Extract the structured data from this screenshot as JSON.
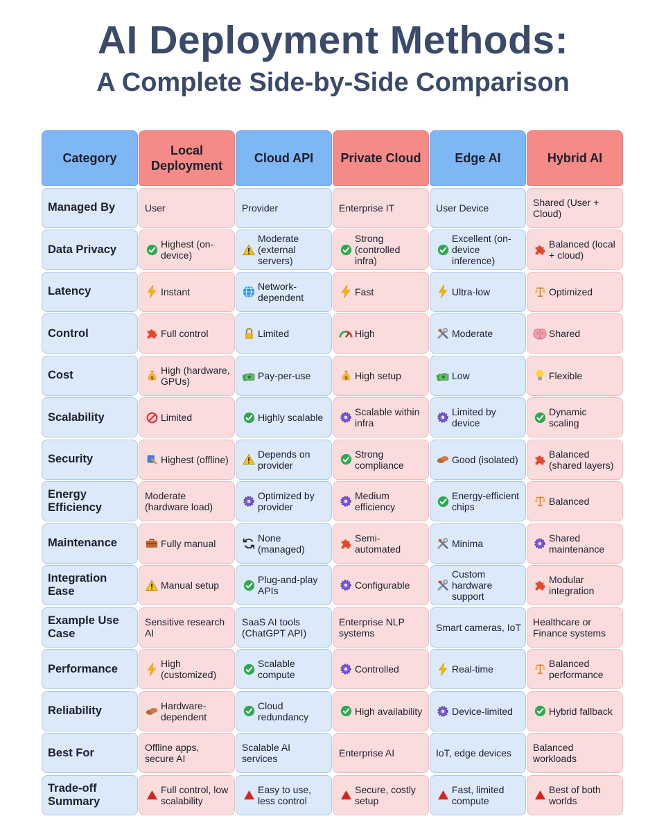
{
  "title": "AI Deployment Methods:",
  "subtitle": "A Complete Side-by-Side Comparison",
  "colors": {
    "header_blue": "#7fb6f4",
    "header_red": "#f58a86",
    "cell_blue": "#dbe9f9",
    "cell_pink": "#fbdcdc",
    "title": "#3a4a68"
  },
  "headers": [
    "Category",
    "Local Deployment",
    "Cloud API",
    "Private Cloud",
    "Edge AI",
    "Hybrid AI"
  ],
  "rows": [
    {
      "category": "Managed By",
      "cells": [
        {
          "icon": "",
          "text": "User"
        },
        {
          "icon": "",
          "text": "Provider"
        },
        {
          "icon": "",
          "text": "Enterprise IT"
        },
        {
          "icon": "",
          "text": "User Device"
        },
        {
          "icon": "",
          "text": "Shared (User + Cloud)"
        }
      ]
    },
    {
      "category": "Data Privacy",
      "cells": [
        {
          "icon": "check-icon",
          "text": "Highest (on-device)"
        },
        {
          "icon": "warning-icon",
          "text": "Moderate (external servers)"
        },
        {
          "icon": "check-icon",
          "text": "Strong (controlled infra)"
        },
        {
          "icon": "check-icon",
          "text": "Excellent (on-device inference)"
        },
        {
          "icon": "puzzle-icon",
          "text": "Balanced (local + cloud)"
        }
      ]
    },
    {
      "category": "Latency",
      "cells": [
        {
          "icon": "lightning-icon",
          "text": "Instant"
        },
        {
          "icon": "globe-icon",
          "text": "Network-dependent"
        },
        {
          "icon": "lightning-icon",
          "text": "Fast"
        },
        {
          "icon": "lightning-icon",
          "text": "Ultra-low"
        },
        {
          "icon": "scales-icon",
          "text": "Optimized"
        }
      ]
    },
    {
      "category": "Control",
      "cells": [
        {
          "icon": "puzzle-icon",
          "text": "Full control"
        },
        {
          "icon": "lock-icon",
          "text": "Limited"
        },
        {
          "icon": "gauge-icon",
          "text": "High"
        },
        {
          "icon": "tools-icon",
          "text": "Moderate"
        },
        {
          "icon": "brain-icon",
          "text": "Shared"
        }
      ]
    },
    {
      "category": "Cost",
      "cells": [
        {
          "icon": "money-bag-icon",
          "text": "High (hardware, GPUs)"
        },
        {
          "icon": "money-icon",
          "text": "Pay-per-use"
        },
        {
          "icon": "money-bag-icon",
          "text": "High setup"
        },
        {
          "icon": "money-icon",
          "text": "Low"
        },
        {
          "icon": "lightbulb-icon",
          "text": "Flexible"
        }
      ]
    },
    {
      "category": "Scalability",
      "cells": [
        {
          "icon": "prohibited-icon",
          "text": "Limited"
        },
        {
          "icon": "check-icon",
          "text": "Highly scalable"
        },
        {
          "icon": "gear-icon",
          "text": "Scalable within infra"
        },
        {
          "icon": "gear-icon",
          "text": "Limited by device"
        },
        {
          "icon": "check-icon",
          "text": "Dynamic scaling"
        }
      ]
    },
    {
      "category": "Security",
      "cells": [
        {
          "icon": "offline-icon",
          "text": "Highest (offline)"
        },
        {
          "icon": "warning-icon",
          "text": "Depends on provider"
        },
        {
          "icon": "check-icon",
          "text": "Strong compliance"
        },
        {
          "icon": "bricks-icon",
          "text": "Good (isolated)"
        },
        {
          "icon": "puzzle-icon",
          "text": "Balanced (shared layers)"
        }
      ]
    },
    {
      "category": "Energy Efficiency",
      "cells": [
        {
          "icon": "",
          "text": "Moderate (hardware load)"
        },
        {
          "icon": "gear-icon",
          "text": "Optimized by provider"
        },
        {
          "icon": "gear-icon",
          "text": "Medium efficiency"
        },
        {
          "icon": "check-icon",
          "text": "Energy-efficient chips"
        },
        {
          "icon": "scales-icon",
          "text": "Balanced"
        }
      ]
    },
    {
      "category": "Maintenance",
      "cells": [
        {
          "icon": "toolbox-icon",
          "text": "Fully manual"
        },
        {
          "icon": "refresh-icon",
          "text": "None (managed)"
        },
        {
          "icon": "puzzle-icon",
          "text": "Semi-automated"
        },
        {
          "icon": "tools-icon",
          "text": "Minima"
        },
        {
          "icon": "gear-icon",
          "text": "Shared maintenance"
        }
      ]
    },
    {
      "category": "Integration Ease",
      "cells": [
        {
          "icon": "warning-icon",
          "text": "Manual setup"
        },
        {
          "icon": "check-icon",
          "text": "Plug-and-play APIs"
        },
        {
          "icon": "gear-icon",
          "text": "Configurable"
        },
        {
          "icon": "tools-icon",
          "text": "Custom hardware support"
        },
        {
          "icon": "puzzle-icon",
          "text": "Modular integration"
        }
      ]
    },
    {
      "category": "Example Use Case",
      "cells": [
        {
          "icon": "",
          "text": "Sensitive research AI"
        },
        {
          "icon": "",
          "text": "SaaS AI tools (ChatGPT API)"
        },
        {
          "icon": "",
          "text": "Enterprise NLP systems"
        },
        {
          "icon": "",
          "text": "Smart cameras, IoT"
        },
        {
          "icon": "",
          "text": "Healthcare or Finance systems"
        }
      ]
    },
    {
      "category": "Performance",
      "cells": [
        {
          "icon": "lightning-icon",
          "text": "High (customized)"
        },
        {
          "icon": "check-icon",
          "text": "Scalable compute"
        },
        {
          "icon": "gear-icon",
          "text": "Controlled"
        },
        {
          "icon": "lightning-icon",
          "text": "Real-time"
        },
        {
          "icon": "scales-icon",
          "text": "Balanced performance"
        }
      ]
    },
    {
      "category": "Reliability",
      "cells": [
        {
          "icon": "bricks-icon",
          "text": "Hardware-dependent"
        },
        {
          "icon": "check-icon",
          "text": "Cloud redundancy"
        },
        {
          "icon": "check-icon",
          "text": "High availability"
        },
        {
          "icon": "gear-icon",
          "text": "Device-limited"
        },
        {
          "icon": "check-icon",
          "text": "Hybrid fallback"
        }
      ]
    },
    {
      "category": "Best For",
      "cells": [
        {
          "icon": "",
          "text": "Offline apps, secure AI"
        },
        {
          "icon": "",
          "text": "Scalable AI services"
        },
        {
          "icon": "",
          "text": "Enterprise AI"
        },
        {
          "icon": "",
          "text": "IoT, edge devices"
        },
        {
          "icon": "",
          "text": "Balanced workloads"
        }
      ]
    },
    {
      "category": "Trade-off Summary",
      "cells": [
        {
          "icon": "triangle-icon",
          "text": "Full control, low scalability"
        },
        {
          "icon": "triangle-icon",
          "text": "Easy to use, less control"
        },
        {
          "icon": "triangle-icon",
          "text": "Secure, costly setup"
        },
        {
          "icon": "triangle-icon",
          "text": "Fast, limited compute"
        },
        {
          "icon": "triangle-icon",
          "text": "Best of both worlds"
        }
      ]
    }
  ]
}
